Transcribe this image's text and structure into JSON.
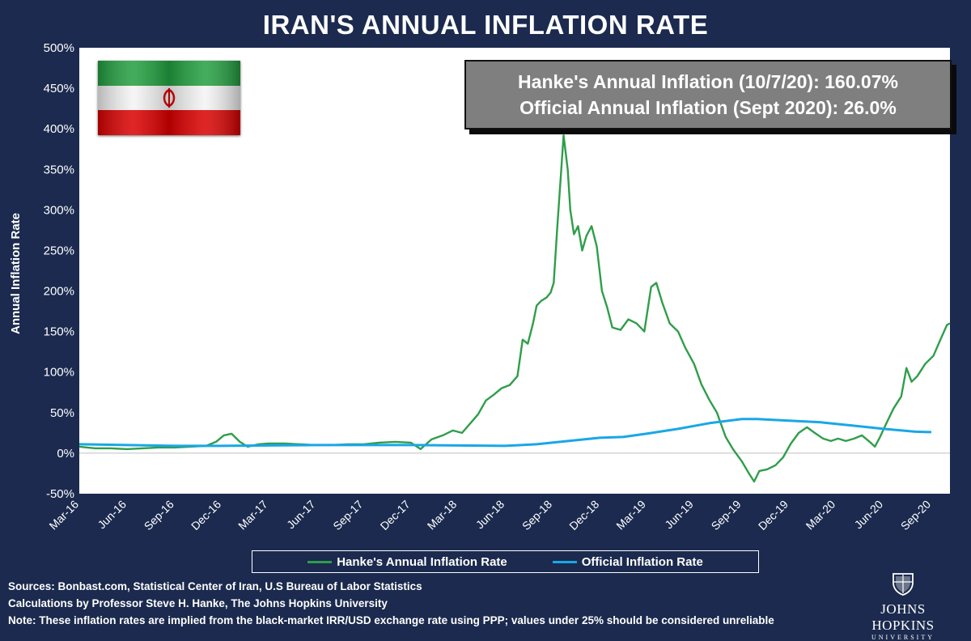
{
  "title": "IRAN'S ANNUAL INFLATION RATE",
  "infobox": {
    "line1": "Hanke's Annual Inflation (10/7/20): 160.07%",
    "line2": "Official Annual Inflation (Sept 2020): 26.0%"
  },
  "footer": {
    "sources": "Sources: Bonbast.com, Statistical Center of Iran, U.S Bureau of Labor Statistics",
    "calculations": "Calculations by Professor Steve H. Hanke, The Johns Hopkins University",
    "note": "Note: These inflation rates are implied from the black-market IRR/USD exchange rate using PPP;  values under 25% should be considered unreliable"
  },
  "logo": {
    "name": "JOHNS HOPKINS",
    "subtitle": "UNIVERSITY",
    "icon": "jhu-shield-icon"
  },
  "flag": {
    "icon": "iran-flag-icon",
    "colors": {
      "green": "#239f40",
      "white": "#ffffff",
      "red": "#da0000"
    }
  },
  "colors": {
    "background": "#1b2a4e",
    "hanke_series": "#2f9e4a",
    "official_series": "#19a7e6",
    "plot_background": "#ffffff"
  },
  "chart_data": {
    "type": "line",
    "title": "IRAN'S ANNUAL INFLATION RATE",
    "xlabel": "",
    "ylabel": "Annual Inflation Rate",
    "ylim": [
      -50,
      500
    ],
    "yticks": [
      "500%",
      "450%",
      "400%",
      "350%",
      "300%",
      "250%",
      "200%",
      "150%",
      "100%",
      "50%",
      "0%",
      "-50%"
    ],
    "ytick_values": [
      500,
      450,
      400,
      350,
      300,
      250,
      200,
      150,
      100,
      50,
      0,
      -50
    ],
    "xlim": [
      "2016-03-01",
      "2020-10-07"
    ],
    "xticks": [
      "Mar-16",
      "Jun-16",
      "Sep-16",
      "Dec-16",
      "Mar-17",
      "Jun-17",
      "Sep-17",
      "Dec-17",
      "Mar-18",
      "Jun-18",
      "Sep-18",
      "Dec-18",
      "Mar-19",
      "Jun-19",
      "Sep-19",
      "Dec-19",
      "Mar-20",
      "Jun-20",
      "Sep-20"
    ],
    "xtick_dates": [
      "2016-03-01",
      "2016-06-01",
      "2016-09-01",
      "2016-12-01",
      "2017-03-01",
      "2017-06-01",
      "2017-09-01",
      "2017-12-01",
      "2018-03-01",
      "2018-06-01",
      "2018-09-01",
      "2018-12-01",
      "2019-03-01",
      "2019-06-01",
      "2019-09-01",
      "2019-12-01",
      "2020-03-01",
      "2020-06-01",
      "2020-09-01"
    ],
    "grid": false,
    "legend_position": "bottom",
    "series": [
      {
        "name": "Hanke's Annual Inflation Rate",
        "color": "#2f9e4a",
        "points": [
          [
            "2016-03-01",
            8
          ],
          [
            "2016-04-01",
            6
          ],
          [
            "2016-05-01",
            6
          ],
          [
            "2016-06-01",
            5
          ],
          [
            "2016-07-01",
            6
          ],
          [
            "2016-08-01",
            7
          ],
          [
            "2016-09-01",
            7
          ],
          [
            "2016-10-01",
            8
          ],
          [
            "2016-11-01",
            9
          ],
          [
            "2016-11-20",
            14
          ],
          [
            "2016-12-05",
            22
          ],
          [
            "2016-12-20",
            24
          ],
          [
            "2017-01-05",
            14
          ],
          [
            "2017-01-20",
            8
          ],
          [
            "2017-02-10",
            11
          ],
          [
            "2017-03-01",
            12
          ],
          [
            "2017-04-01",
            12
          ],
          [
            "2017-05-01",
            11
          ],
          [
            "2017-06-01",
            10
          ],
          [
            "2017-07-01",
            10
          ],
          [
            "2017-08-01",
            11
          ],
          [
            "2017-09-01",
            11
          ],
          [
            "2017-10-01",
            13
          ],
          [
            "2017-11-01",
            14
          ],
          [
            "2017-12-01",
            13
          ],
          [
            "2017-12-20",
            5
          ],
          [
            "2018-01-10",
            17
          ],
          [
            "2018-02-01",
            22
          ],
          [
            "2018-02-20",
            28
          ],
          [
            "2018-03-10",
            25
          ],
          [
            "2018-03-25",
            36
          ],
          [
            "2018-04-10",
            48
          ],
          [
            "2018-04-25",
            65
          ],
          [
            "2018-05-10",
            72
          ],
          [
            "2018-05-25",
            80
          ],
          [
            "2018-06-10",
            84
          ],
          [
            "2018-06-25",
            95
          ],
          [
            "2018-07-05",
            140
          ],
          [
            "2018-07-15",
            135
          ],
          [
            "2018-07-25",
            160
          ],
          [
            "2018-08-01",
            182
          ],
          [
            "2018-08-10",
            188
          ],
          [
            "2018-08-20",
            192
          ],
          [
            "2018-08-28",
            198
          ],
          [
            "2018-09-03",
            210
          ],
          [
            "2018-09-10",
            280
          ],
          [
            "2018-09-17",
            345
          ],
          [
            "2018-09-22",
            392
          ],
          [
            "2018-09-30",
            350
          ],
          [
            "2018-10-05",
            300
          ],
          [
            "2018-10-12",
            270
          ],
          [
            "2018-10-20",
            280
          ],
          [
            "2018-10-28",
            250
          ],
          [
            "2018-11-05",
            268
          ],
          [
            "2018-11-15",
            280
          ],
          [
            "2018-11-25",
            255
          ],
          [
            "2018-12-05",
            200
          ],
          [
            "2018-12-15",
            180
          ],
          [
            "2018-12-25",
            155
          ],
          [
            "2019-01-10",
            152
          ],
          [
            "2019-01-25",
            165
          ],
          [
            "2019-02-10",
            160
          ],
          [
            "2019-02-25",
            150
          ],
          [
            "2019-03-10",
            205
          ],
          [
            "2019-03-20",
            210
          ],
          [
            "2019-04-01",
            185
          ],
          [
            "2019-04-15",
            160
          ],
          [
            "2019-05-01",
            150
          ],
          [
            "2019-05-15",
            130
          ],
          [
            "2019-06-01",
            110
          ],
          [
            "2019-06-15",
            85
          ],
          [
            "2019-07-01",
            65
          ],
          [
            "2019-07-15",
            50
          ],
          [
            "2019-08-01",
            20
          ],
          [
            "2019-08-15",
            5
          ],
          [
            "2019-09-01",
            -10
          ],
          [
            "2019-09-15",
            -25
          ],
          [
            "2019-09-25",
            -35
          ],
          [
            "2019-10-05",
            -22
          ],
          [
            "2019-10-20",
            -20
          ],
          [
            "2019-11-05",
            -15
          ],
          [
            "2019-11-20",
            -5
          ],
          [
            "2019-12-05",
            12
          ],
          [
            "2019-12-20",
            25
          ],
          [
            "2020-01-05",
            32
          ],
          [
            "2020-01-20",
            25
          ],
          [
            "2020-02-05",
            18
          ],
          [
            "2020-02-20",
            15
          ],
          [
            "2020-03-05",
            18
          ],
          [
            "2020-03-20",
            15
          ],
          [
            "2020-04-05",
            18
          ],
          [
            "2020-04-20",
            22
          ],
          [
            "2020-05-05",
            14
          ],
          [
            "2020-05-15",
            8
          ],
          [
            "2020-05-25",
            20
          ],
          [
            "2020-06-05",
            35
          ],
          [
            "2020-06-20",
            55
          ],
          [
            "2020-07-05",
            70
          ],
          [
            "2020-07-15",
            105
          ],
          [
            "2020-07-25",
            88
          ],
          [
            "2020-08-05",
            95
          ],
          [
            "2020-08-20",
            110
          ],
          [
            "2020-09-05",
            120
          ],
          [
            "2020-09-20",
            142
          ],
          [
            "2020-10-01",
            158
          ],
          [
            "2020-10-07",
            160.07
          ]
        ]
      },
      {
        "name": "Official Inflation Rate",
        "color": "#19a7e6",
        "points": [
          [
            "2016-03-01",
            11
          ],
          [
            "2016-06-01",
            10
          ],
          [
            "2016-09-01",
            9
          ],
          [
            "2016-12-01",
            9
          ],
          [
            "2017-03-01",
            9.5
          ],
          [
            "2017-06-01",
            10
          ],
          [
            "2017-09-01",
            10
          ],
          [
            "2017-12-01",
            10
          ],
          [
            "2018-03-01",
            9.5
          ],
          [
            "2018-06-01",
            9
          ],
          [
            "2018-08-01",
            11
          ],
          [
            "2018-10-01",
            15
          ],
          [
            "2018-12-01",
            19
          ],
          [
            "2019-01-15",
            20
          ],
          [
            "2019-03-01",
            24
          ],
          [
            "2019-05-01",
            30
          ],
          [
            "2019-07-01",
            37
          ],
          [
            "2019-09-01",
            42
          ],
          [
            "2019-10-01",
            42
          ],
          [
            "2019-12-01",
            40
          ],
          [
            "2020-02-01",
            38
          ],
          [
            "2020-04-01",
            34
          ],
          [
            "2020-06-01",
            30
          ],
          [
            "2020-08-01",
            26.5
          ],
          [
            "2020-09-01",
            26
          ]
        ]
      }
    ]
  }
}
